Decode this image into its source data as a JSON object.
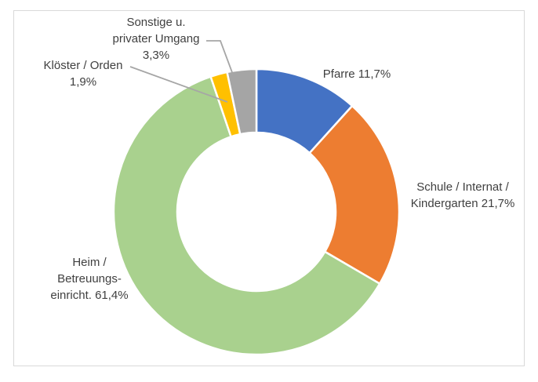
{
  "chart_data": {
    "type": "pie",
    "subtype": "donut",
    "title": "",
    "categories": [
      "Pfarre",
      "Schule / Internat / Kindergarten",
      "Heim / Betreuungseinricht.",
      "Klöster / Orden",
      "Sonstige u. privater Umgang"
    ],
    "values": [
      11.7,
      21.7,
      61.4,
      1.9,
      3.3
    ],
    "value_labels": [
      "11,7%",
      "21,7%",
      "61,4%",
      "1,9%",
      "3,3%"
    ],
    "unit": "%",
    "colors": [
      "#4472C4",
      "#ED7D31",
      "#A9D18E",
      "#FFC000",
      "#A5A5A5"
    ],
    "start_angle_deg": 0,
    "direction": "clockwise",
    "hole_ratio": 0.555,
    "slice_border_color": "#FFFFFF",
    "legend": "none",
    "data_label_position": "outside-with-leader-lines"
  },
  "labels": {
    "pfarre": {
      "lines": [
        "Pfarre 11,7%"
      ]
    },
    "schule": {
      "lines": [
        "Schule / Internat /",
        "Kindergarten 21,7%"
      ]
    },
    "heim": {
      "lines": [
        "Heim /",
        "Betreuungs-",
        "einricht. 61,4%"
      ]
    },
    "kloester": {
      "lines": [
        "Klöster / Orden",
        "1,9%"
      ]
    },
    "sonstige": {
      "lines": [
        "Sonstige u.",
        "privater Umgang",
        "3,3%"
      ]
    }
  },
  "style": {
    "text_color": "#404040",
    "leader_line_color": "#A6A6A6",
    "frame_border_color": "#D9D9D9",
    "background": "#FFFFFF"
  }
}
